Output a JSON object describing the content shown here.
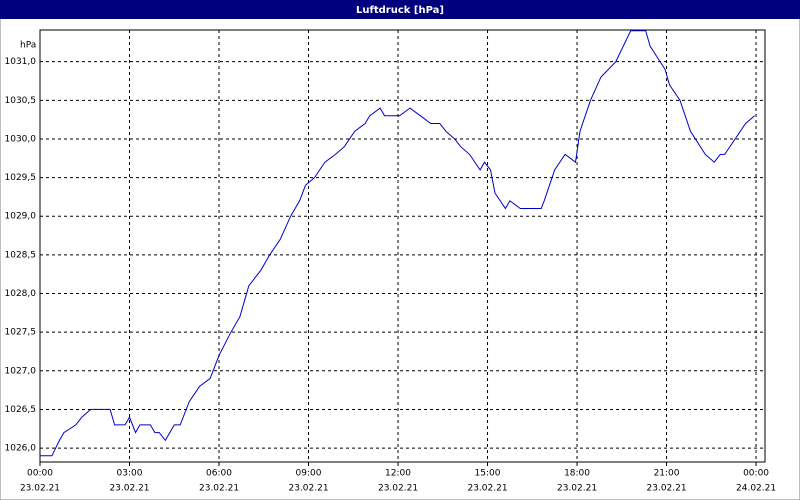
{
  "chart_data": {
    "type": "line",
    "title": "Luftdruck [hPa]",
    "y_label": "hPa",
    "x": [
      0,
      0.4,
      0.65,
      0.8,
      1.2,
      1.4,
      1.7,
      2.35,
      2.5,
      2.85,
      3.0,
      3.2,
      3.35,
      3.7,
      3.85,
      4.0,
      4.2,
      4.5,
      4.7,
      5.0,
      5.35,
      5.7,
      6.0,
      6.4,
      6.7,
      7.0,
      7.4,
      7.7,
      8.05,
      8.4,
      8.7,
      8.9,
      9.2,
      9.55,
      9.9,
      10.2,
      10.55,
      10.9,
      11.05,
      11.4,
      11.55,
      12.05,
      12.4,
      12.75,
      13.1,
      13.4,
      13.6,
      13.9,
      14.1,
      14.4,
      14.75,
      14.9,
      15.1,
      15.25,
      15.6,
      15.75,
      16.1,
      16.8,
      16.9,
      17.25,
      17.6,
      17.95,
      18.1,
      18.45,
      18.8,
      19.3,
      19.8,
      20.3,
      20.45,
      20.95,
      21.1,
      21.45,
      21.8,
      22.3,
      22.6,
      22.8,
      22.95,
      23.65,
      23.95
    ],
    "series": [
      {
        "name": "Luftdruck",
        "color": "#0000cc",
        "values": [
          1025.9,
          1025.9,
          1026.1,
          1026.2,
          1026.3,
          1026.4,
          1026.5,
          1026.5,
          1026.3,
          1026.3,
          1026.4,
          1026.2,
          1026.3,
          1026.3,
          1026.2,
          1026.2,
          1026.1,
          1026.3,
          1026.3,
          1026.6,
          1026.8,
          1026.9,
          1027.2,
          1027.5,
          1027.7,
          1028.1,
          1028.3,
          1028.5,
          1028.7,
          1029.0,
          1029.2,
          1029.4,
          1029.5,
          1029.7,
          1029.8,
          1029.9,
          1030.1,
          1030.2,
          1030.3,
          1030.4,
          1030.3,
          1030.3,
          1030.4,
          1030.3,
          1030.2,
          1030.2,
          1030.1,
          1030.0,
          1029.9,
          1029.8,
          1029.6,
          1029.7,
          1029.6,
          1029.3,
          1029.1,
          1029.2,
          1029.1,
          1029.1,
          1029.2,
          1029.6,
          1029.8,
          1029.7,
          1030.1,
          1030.5,
          1030.8,
          1031.0,
          1031.4,
          1031.4,
          1031.2,
          1030.9,
          1030.7,
          1030.5,
          1030.1,
          1029.8,
          1029.7,
          1029.8,
          1029.8,
          1030.2,
          1030.3
        ]
      }
    ],
    "xlim": [
      0,
      24.3
    ],
    "xticks": [
      {
        "value": 0,
        "label": "00:00",
        "date": "23.02.21"
      },
      {
        "value": 3,
        "label": "03:00",
        "date": "23.02.21"
      },
      {
        "value": 6,
        "label": "06:00",
        "date": "23.02.21"
      },
      {
        "value": 9,
        "label": "09:00",
        "date": "23.02.21"
      },
      {
        "value": 12,
        "label": "12:00",
        "date": "23.02.21"
      },
      {
        "value": 15,
        "label": "15:00",
        "date": "23.02.21"
      },
      {
        "value": 18,
        "label": "18:00",
        "date": "23.02.21"
      },
      {
        "value": 21,
        "label": "21:00",
        "date": "23.02.21"
      },
      {
        "value": 24,
        "label": "00:00",
        "date": "24.02.21"
      }
    ],
    "ylim": [
      1025.82,
      1031.41
    ],
    "yticks": [
      {
        "value": 1026,
        "label": "1026,0"
      },
      {
        "value": 1026.5,
        "label": "1026,5"
      },
      {
        "value": 1027,
        "label": "1027,0"
      },
      {
        "value": 1027.5,
        "label": "1027,5"
      },
      {
        "value": 1028,
        "label": "1028,0"
      },
      {
        "value": 1028.5,
        "label": "1028,5"
      },
      {
        "value": 1029,
        "label": "1029,0"
      },
      {
        "value": 1029.5,
        "label": "1029,5"
      },
      {
        "value": 1030,
        "label": "1030,0"
      },
      {
        "value": 1030.5,
        "label": "1030,5"
      },
      {
        "value": 1031,
        "label": "1031,0"
      }
    ],
    "grid": true
  }
}
